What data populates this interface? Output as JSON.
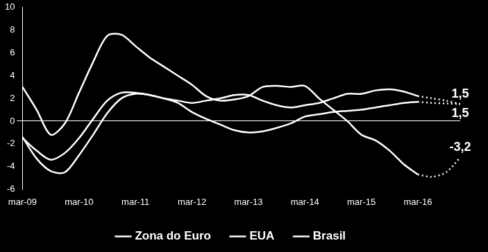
{
  "chart_data": {
    "type": "line",
    "categories": [
      "mar-09",
      null,
      null,
      null,
      "mar-10",
      null,
      null,
      null,
      "mar-11",
      null,
      null,
      null,
      "mar-12",
      null,
      null,
      null,
      "mar-13",
      null,
      null,
      null,
      "mar-14",
      null,
      null,
      null,
      "mar-15",
      null,
      null,
      null,
      "mar-16",
      null,
      null,
      null
    ],
    "ylim": [
      -6,
      10
    ],
    "yticks": [
      -6,
      -4,
      -2,
      0,
      2,
      4,
      6,
      8,
      10
    ],
    "grid": false,
    "legend": "bottom",
    "data_labels": true,
    "series": [
      {
        "name": "Zona do Euro",
        "color": "#ffffff",
        "values": [
          -1.4,
          -3.3,
          -4.4,
          -4.5,
          -3.0,
          -1.2,
          0.7,
          2.0,
          2.4,
          2.3,
          2.0,
          1.6,
          0.8,
          0.2,
          -0.3,
          -0.8,
          -1.0,
          -0.9,
          -0.6,
          -0.2,
          0.4,
          0.6,
          0.8,
          0.9,
          1.0,
          1.2,
          1.4,
          1.6,
          1.7,
          null,
          null,
          null
        ],
        "forecast": [
          null,
          null,
          null,
          null,
          null,
          null,
          null,
          null,
          null,
          null,
          null,
          null,
          null,
          null,
          null,
          null,
          null,
          null,
          null,
          null,
          null,
          null,
          null,
          null,
          null,
          null,
          null,
          null,
          1.7,
          1.6,
          1.55,
          1.5
        ],
        "value_labels": [
          null,
          null,
          null,
          null,
          null,
          null,
          null,
          null,
          null,
          null,
          null,
          null,
          null,
          null,
          null,
          null,
          null,
          null,
          null,
          null,
          null,
          null,
          null,
          null,
          null,
          null,
          null,
          null,
          null,
          null,
          null,
          "1,5"
        ]
      },
      {
        "name": "EUA",
        "color": "#ffffff",
        "values": [
          -1.5,
          -2.6,
          -3.4,
          -2.8,
          -1.5,
          0.2,
          1.8,
          2.5,
          2.5,
          2.3,
          2.0,
          1.8,
          1.6,
          1.8,
          2.0,
          2.3,
          2.3,
          1.8,
          1.4,
          1.2,
          1.4,
          1.6,
          2.0,
          2.4,
          2.4,
          2.7,
          2.8,
          2.6,
          2.2,
          null,
          null,
          null
        ],
        "forecast": [
          null,
          null,
          null,
          null,
          null,
          null,
          null,
          null,
          null,
          null,
          null,
          null,
          null,
          null,
          null,
          null,
          null,
          null,
          null,
          null,
          null,
          null,
          null,
          null,
          null,
          null,
          null,
          null,
          2.2,
          2.0,
          1.8,
          1.5
        ],
        "value_labels": [
          null,
          null,
          null,
          null,
          null,
          null,
          null,
          null,
          null,
          null,
          null,
          null,
          null,
          null,
          null,
          null,
          null,
          null,
          null,
          null,
          null,
          null,
          null,
          null,
          null,
          null,
          null,
          null,
          null,
          null,
          null,
          "1,5"
        ]
      },
      {
        "name": "Brasil",
        "color": "#ffffff",
        "values": [
          3.0,
          1.0,
          -1.2,
          -0.2,
          2.5,
          5.2,
          7.5,
          7.6,
          6.6,
          5.6,
          4.8,
          4.0,
          3.2,
          2.2,
          1.8,
          1.9,
          2.2,
          3.0,
          3.1,
          3.0,
          3.1,
          2.0,
          1.0,
          0.0,
          -1.2,
          -1.7,
          -2.6,
          -3.8,
          -4.7,
          null,
          null,
          null
        ],
        "forecast": [
          null,
          null,
          null,
          null,
          null,
          null,
          null,
          null,
          null,
          null,
          null,
          null,
          null,
          null,
          null,
          null,
          null,
          null,
          null,
          null,
          null,
          null,
          null,
          null,
          null,
          null,
          null,
          null,
          -4.7,
          -4.9,
          -4.5,
          -3.2
        ],
        "value_labels": [
          null,
          null,
          null,
          null,
          null,
          null,
          null,
          null,
          null,
          null,
          null,
          null,
          null,
          null,
          null,
          null,
          null,
          null,
          null,
          null,
          null,
          null,
          null,
          null,
          null,
          null,
          null,
          null,
          null,
          null,
          null,
          "-3,2"
        ]
      }
    ]
  }
}
